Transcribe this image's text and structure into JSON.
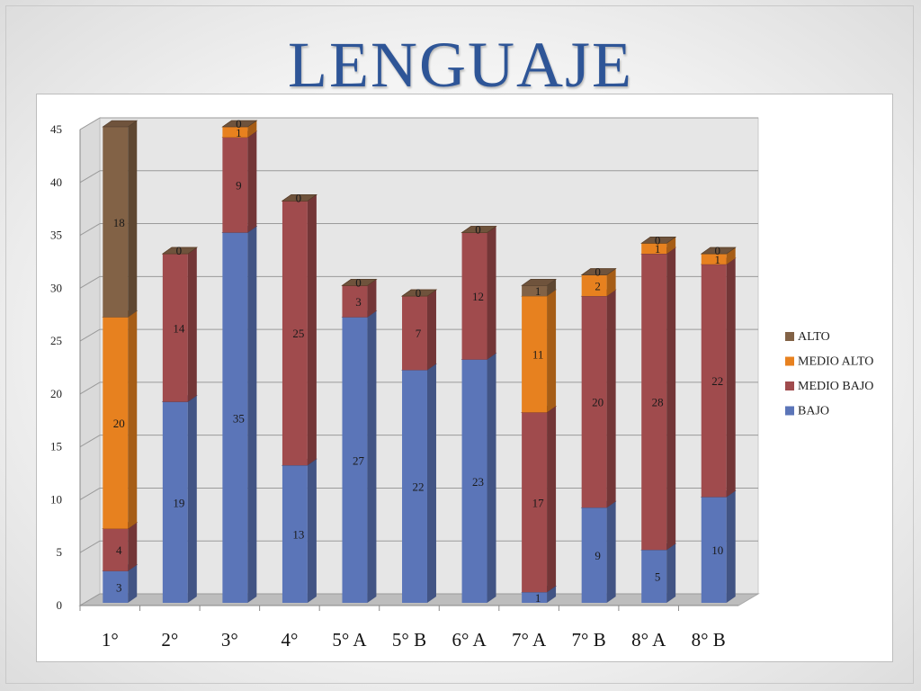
{
  "page": {
    "title": "LENGUAJE"
  },
  "chart_data": {
    "type": "bar",
    "stacked": true,
    "three_d": true,
    "title": "LENGUAJE",
    "categories": [
      "1°",
      "2°",
      "3°",
      "4°",
      "5° A",
      "5° B",
      "6° A",
      "7° A",
      "7° B",
      "8° A",
      "8° B"
    ],
    "series": [
      {
        "name": "BAJO",
        "color": "#5b75b8",
        "values": [
          3,
          19,
          35,
          13,
          27,
          22,
          23,
          1,
          9,
          5,
          10
        ]
      },
      {
        "name": "MEDIO BAJO",
        "color": "#a04b4d",
        "values": [
          4,
          14,
          9,
          25,
          3,
          7,
          12,
          17,
          20,
          28,
          22
        ]
      },
      {
        "name": "MEDIO ALTO",
        "color": "#e7811f",
        "values": [
          20,
          0,
          1,
          0,
          0,
          0,
          0,
          11,
          2,
          1,
          1
        ]
      },
      {
        "name": "ALTO",
        "color": "#826246",
        "values": [
          18,
          0,
          0,
          0,
          0,
          0,
          0,
          1,
          0,
          0,
          0
        ]
      }
    ],
    "ylim": [
      0,
      45
    ],
    "yticks": [
      0,
      5,
      10,
      15,
      20,
      25,
      30,
      35,
      40,
      45
    ],
    "grid": true,
    "legend": "right",
    "legend_order": [
      "ALTO",
      "MEDIO ALTO",
      "MEDIO BAJO",
      "BAJO"
    ]
  }
}
